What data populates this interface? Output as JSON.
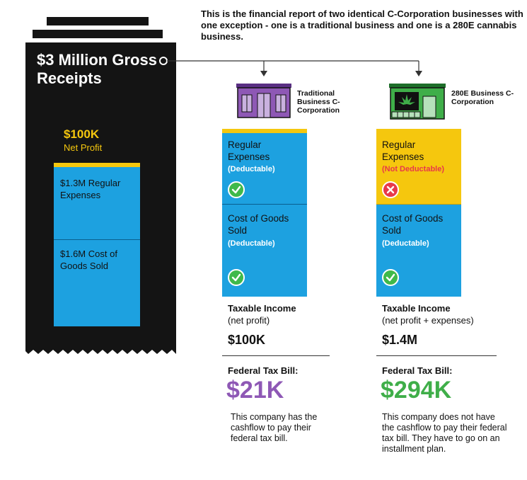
{
  "header": {
    "intro_text": "This is the financial report of two identical C-Corporation businesses with one exception - one is a traditional business and one is a 280E cannabis business."
  },
  "receipt": {
    "title": "$3 Million Gross Receipts",
    "net_profit_value": "$100K",
    "net_profit_label": "Net Profit",
    "regular_expenses": "$1.3M Regular Expenses",
    "cogs": "$1.6M Cost of Goods Sold"
  },
  "traditional": {
    "label": "Traditional Business C-Corporation",
    "regular_expenses_label": "Regular Expenses",
    "regular_expenses_note": "(Deductable)",
    "cogs_label": "Cost of Goods Sold",
    "cogs_note": "(Deductable)",
    "taxable_income_label": "Taxable Income",
    "taxable_income_sub": "(net profit)",
    "taxable_income_value": "$100K",
    "federal_tax_label": "Federal Tax Bill:",
    "federal_tax_value": "$21K",
    "description": "This company has the cashflow to pay their federal tax bill.",
    "accent": "#8e58b5"
  },
  "cannabis": {
    "label": "280E Business C-Corporation",
    "regular_expenses_label": "Regular Expenses",
    "regular_expenses_note": "(Not Deductable)",
    "cogs_label": "Cost of Goods Sold",
    "cogs_note": "(Deductable)",
    "taxable_income_label": "Taxable Income",
    "taxable_income_sub": "(net profit + expenses)",
    "taxable_income_value": "$1.4M",
    "federal_tax_label": "Federal Tax Bill:",
    "federal_tax_value": "$294K",
    "description": "This company does not have the cashflow to pay their federal tax bill. They have to go on an installment plan.",
    "accent": "#3fae49",
    "warn": "#e8384a"
  }
}
